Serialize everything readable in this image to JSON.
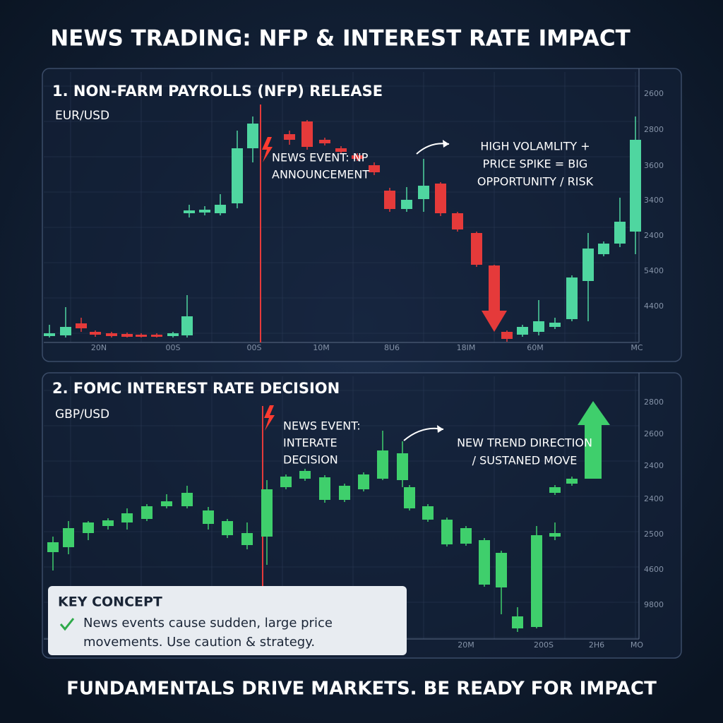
{
  "title": "NEWS TRADING: NFP & INTEREST RATE IMPACT",
  "panels": [
    {
      "title": "1. NON-FARM PAYROLLS (NFP) RELEASE",
      "pair": "EUR/USD",
      "event": [
        "NEWS EVENT: NP",
        "ANNOUNCEMENT"
      ],
      "note": [
        "HIGH VOLAMLITY +",
        "PRICE SPIKE = BIG",
        "OPPORTUNITY / RISK"
      ],
      "y_labels": [
        "2600",
        "2800",
        "3600",
        "3400",
        "2400",
        "5400",
        "4400"
      ],
      "x_labels": [
        "20N",
        "00S",
        "00S",
        "10M",
        "8U6",
        "18IM",
        "60M",
        "MC"
      ]
    },
    {
      "title": "2. FOMC INTEREST RATE DECISION",
      "pair": "GBP/USD",
      "event": [
        "NEWS EVENT:",
        "INTERATE",
        "DECISION"
      ],
      "note": [
        "NEW TREND DIRECTION",
        "/ SUSTANED MOVE"
      ],
      "y_labels": [
        "2800",
        "2600",
        "2400",
        "2400",
        "2500",
        "4600",
        "9800"
      ],
      "x_labels": [
        "20M",
        "200S",
        "2H6",
        "MO"
      ]
    }
  ],
  "key_concept": {
    "heading": "KEY CONCEPT",
    "lines": [
      "News events cause sudden, large price",
      "movements. Use caution & strategy."
    ]
  },
  "footer": "FUNDAMENTALS DRIVE MARKETS. BE READY FOR IMPACT"
}
